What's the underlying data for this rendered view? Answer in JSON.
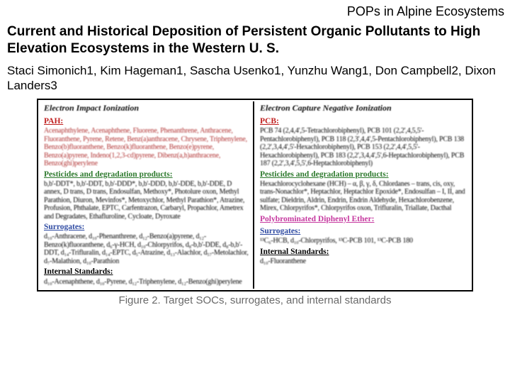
{
  "header_right": "POPs in Alpine Ecosystems",
  "title": "Current and Historical Deposition of Persistent Organic Pollutants to High Elevation Ecosystems in the Western U. S.",
  "authors": "Staci Simonich1, Kim Hageman1, Sascha Usenko1, Yunzhu Wang1, Don Campbell2, Dixon Landers3",
  "caption": "Figure 2.  Target SOCs, surrogates, and internal standards",
  "left": {
    "col_head": "Electron Impact Ionization",
    "pah": {
      "head": "PAH:",
      "body": "Acenaphthylene, Acenaphthene, Fluorene, Phenanthrene, Anthracene, Fluoranthene, Pyrene, Retene, Benz(a)anthracene, Chrysene, Triphenylene, Benzo(b)fluoranthene, Benzo(k)fluoranthene, Benzo(e)pyrene, Benzo(a)pyrene, Indeno(1,2,3-cd)pyrene, Dibenz(a,h)anthracene, Benzo(ghi)perylene"
    },
    "pest": {
      "head": "Pesticides and degradation products:",
      "body": "b,b'-DDT*, b,b'-DDT, b,b'-DDD*, b,b'-DDD, b,b'-DDE, b,b'-DDE, D annex, D trans, D trans, Endosulfan, Methoxy*, Photolure oxon, Methyl Parathion, Diuron, Mevinfos*, Metoxychlor, Methyl Parathion*, Atrazine, Profusion, Phthalate, EPTC, Carfentrazon, Carbaryl, Propachlor, Ametrex and Degradates, Ethafluroline, Cycloate, Dyroxate"
    },
    "surr": {
      "head": "Surrogates:",
      "body": "d₁₀-Anthracene, d₁₀-Phenanthrene, d₁₂-Benzo(a)pyrene, d₁₂-Benzo(k)fluoranthene, d₆-γ-HCH, d₁₀-Chlorpyrifos, d₈-b,b'-DDE, d₈-b,b'-DDT, d₁₄-Trifluralin, d₁₄-EPTC, d₅-Atrazine, d₁₃-Alachlor, d₅₇-Metolachlor, d₇-Malathion, d₁₀-Parathion"
    },
    "istd": {
      "head": "Internal Standards:",
      "body": "d₁₀-Acenaphthene, d₁₀-Pyrene, d₁₂-Triphenylene, d₁₂-Benzo(ghi)perylene"
    }
  },
  "right": {
    "col_head": "Electron Capture Negative Ionization",
    "pcb": {
      "head": "PCB:",
      "body": "PCB 74 (2,4,4',5-Tetrachlorobiphenyl), PCB 101 (2,2',4,5,5'-Pentachlorobiphenyl), PCB 118 (2,3',4,4',5-Pentachlorobiphenyl), PCB 138 (2,2',3,4,4',5'-Hexachlorobiphenyl), PCB 153 (2,2',4,4',5,5'-Hexachlorobiphenyl), PCB 183 (2,2',3,4,4',5',6-Heptachlorobiphenyl), PCB 187 (2,2',3,4',5,5',6-Heptachlorobiphenyl)"
    },
    "pest2": {
      "head": "Pesticides and degradation products:",
      "body": "Hexachlorocyclohexane (HCH) – α, β, γ, δ, Chlordanes – trans, cis, oxy, trans-Nonachlor*, Heptachlor, Heptachlor Epoxide*, Endosulfan – I, II, and sulfate; Dieldrin, Aldrin, Endrin, Endrin Aldehyde, Hexachlorobenzene, Mirex, Chlorpyrifos*, Chlorpyrifos oxon, Trifluralin, Triallate, Dacthal"
    },
    "pbde": {
      "head": "Polybrominated Diphenyl Ether:"
    },
    "surr2": {
      "head": "Surrogates:",
      "body": "¹³C₆-HCB, d₁₀-Chlorpyrifos, ¹³C-PCB 101, ¹³C-PCB 180"
    },
    "istd2": {
      "head": "Internal Standards:",
      "body": "d₁₀-Fluoranthene"
    }
  }
}
